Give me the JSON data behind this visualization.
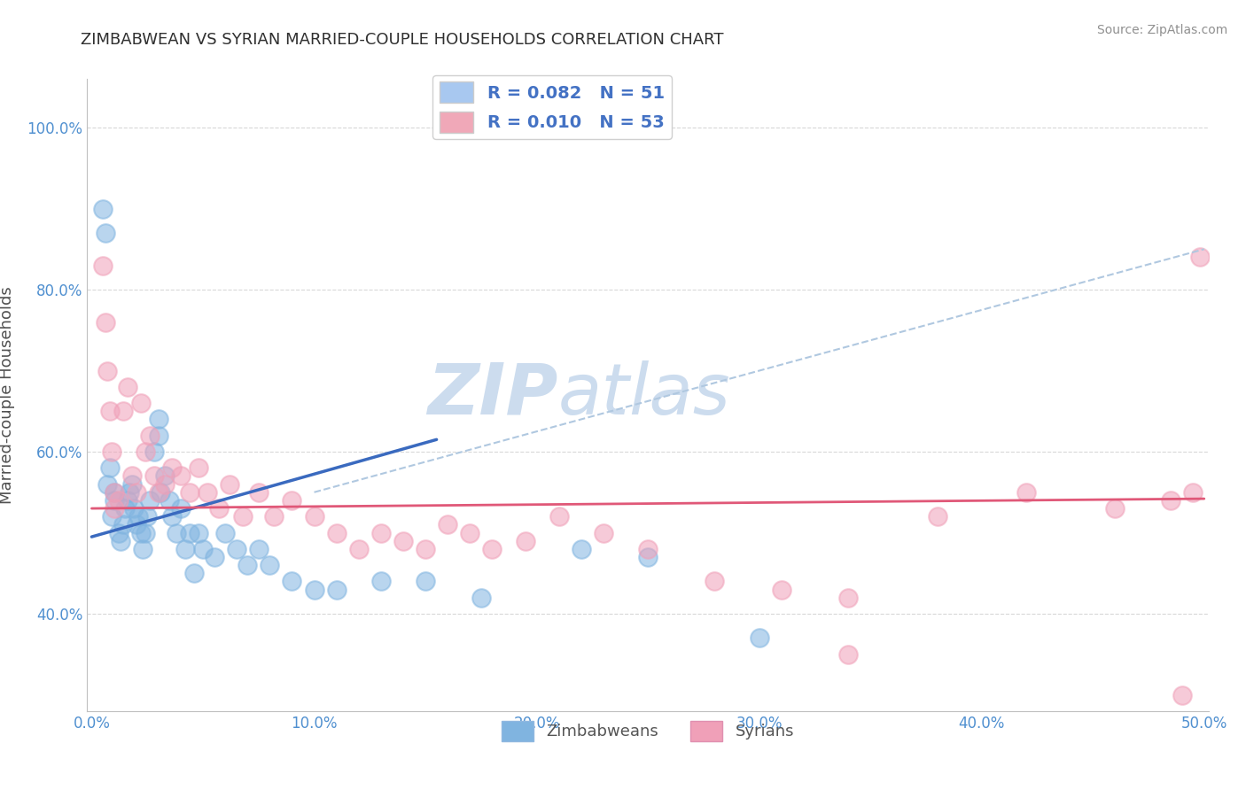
{
  "title": "ZIMBABWEAN VS SYRIAN MARRIED-COUPLE HOUSEHOLDS CORRELATION CHART",
  "source": "Source: ZipAtlas.com",
  "ylabel": "Married-couple Households",
  "xlabel": "",
  "xlim": [
    -0.002,
    0.502
  ],
  "ylim": [
    0.28,
    1.06
  ],
  "xticks": [
    0.0,
    0.1,
    0.2,
    0.3,
    0.4,
    0.5
  ],
  "xtick_labels": [
    "0.0%",
    "10.0%",
    "20.0%",
    "30.0%",
    "40.0%",
    "50.0%"
  ],
  "yticks": [
    0.4,
    0.6,
    0.8,
    1.0
  ],
  "ytick_labels": [
    "40.0%",
    "60.0%",
    "80.0%",
    "100.0%"
  ],
  "legend_entries": [
    {
      "label": "R = 0.082   N = 51",
      "color": "#a8c8f0"
    },
    {
      "label": "R = 0.010   N = 53",
      "color": "#f0a8b8"
    }
  ],
  "zimbabwean_color": "#80b4e0",
  "syrian_color": "#f0a0b8",
  "blue_line_color": "#3a6abf",
  "pink_line_color": "#e05878",
  "dashed_line_color": "#b0c8e0",
  "grid_color": "#d8d8d8",
  "watermark_zip": "ZIP",
  "watermark_atlas": "atlas",
  "watermark_color": "#ccdcee",
  "background_color": "#ffffff",
  "title_color": "#303030",
  "axis_color": "#5090d0",
  "zimbabwean_x": [
    0.005,
    0.006,
    0.007,
    0.008,
    0.009,
    0.01,
    0.01,
    0.012,
    0.013,
    0.014,
    0.015,
    0.016,
    0.017,
    0.018,
    0.019,
    0.02,
    0.021,
    0.022,
    0.023,
    0.024,
    0.025,
    0.026,
    0.028,
    0.03,
    0.03,
    0.031,
    0.033,
    0.035,
    0.036,
    0.038,
    0.04,
    0.042,
    0.044,
    0.046,
    0.048,
    0.05,
    0.055,
    0.06,
    0.065,
    0.07,
    0.075,
    0.08,
    0.09,
    0.1,
    0.11,
    0.13,
    0.15,
    0.175,
    0.22,
    0.25,
    0.3
  ],
  "zimbabwean_y": [
    0.9,
    0.87,
    0.56,
    0.58,
    0.52,
    0.54,
    0.55,
    0.5,
    0.49,
    0.51,
    0.53,
    0.54,
    0.55,
    0.56,
    0.53,
    0.51,
    0.52,
    0.5,
    0.48,
    0.5,
    0.52,
    0.54,
    0.6,
    0.62,
    0.64,
    0.55,
    0.57,
    0.54,
    0.52,
    0.5,
    0.53,
    0.48,
    0.5,
    0.45,
    0.5,
    0.48,
    0.47,
    0.5,
    0.48,
    0.46,
    0.48,
    0.46,
    0.44,
    0.43,
    0.43,
    0.44,
    0.44,
    0.42,
    0.48,
    0.47,
    0.37
  ],
  "syrian_x": [
    0.005,
    0.006,
    0.007,
    0.008,
    0.009,
    0.01,
    0.012,
    0.014,
    0.016,
    0.018,
    0.02,
    0.022,
    0.024,
    0.026,
    0.028,
    0.03,
    0.033,
    0.036,
    0.04,
    0.044,
    0.048,
    0.052,
    0.057,
    0.062,
    0.068,
    0.075,
    0.082,
    0.09,
    0.1,
    0.11,
    0.12,
    0.13,
    0.14,
    0.15,
    0.16,
    0.17,
    0.18,
    0.195,
    0.21,
    0.23,
    0.25,
    0.28,
    0.31,
    0.34,
    0.38,
    0.42,
    0.46,
    0.485,
    0.495,
    0.498,
    0.34,
    0.49,
    0.01
  ],
  "syrian_y": [
    0.83,
    0.76,
    0.7,
    0.65,
    0.6,
    0.55,
    0.54,
    0.65,
    0.68,
    0.57,
    0.55,
    0.66,
    0.6,
    0.62,
    0.57,
    0.55,
    0.56,
    0.58,
    0.57,
    0.55,
    0.58,
    0.55,
    0.53,
    0.56,
    0.52,
    0.55,
    0.52,
    0.54,
    0.52,
    0.5,
    0.48,
    0.5,
    0.49,
    0.48,
    0.51,
    0.5,
    0.48,
    0.49,
    0.52,
    0.5,
    0.48,
    0.44,
    0.43,
    0.42,
    0.52,
    0.55,
    0.53,
    0.54,
    0.55,
    0.84,
    0.35,
    0.3,
    0.53
  ],
  "blue_trend_x": [
    0.0,
    0.155
  ],
  "blue_trend_y": [
    0.495,
    0.615
  ],
  "pink_trend_x": [
    0.0,
    0.5
  ],
  "pink_trend_y": [
    0.53,
    0.542
  ],
  "dashed_trend_x": [
    0.1,
    0.5
  ],
  "dashed_trend_y": [
    0.55,
    0.85
  ]
}
